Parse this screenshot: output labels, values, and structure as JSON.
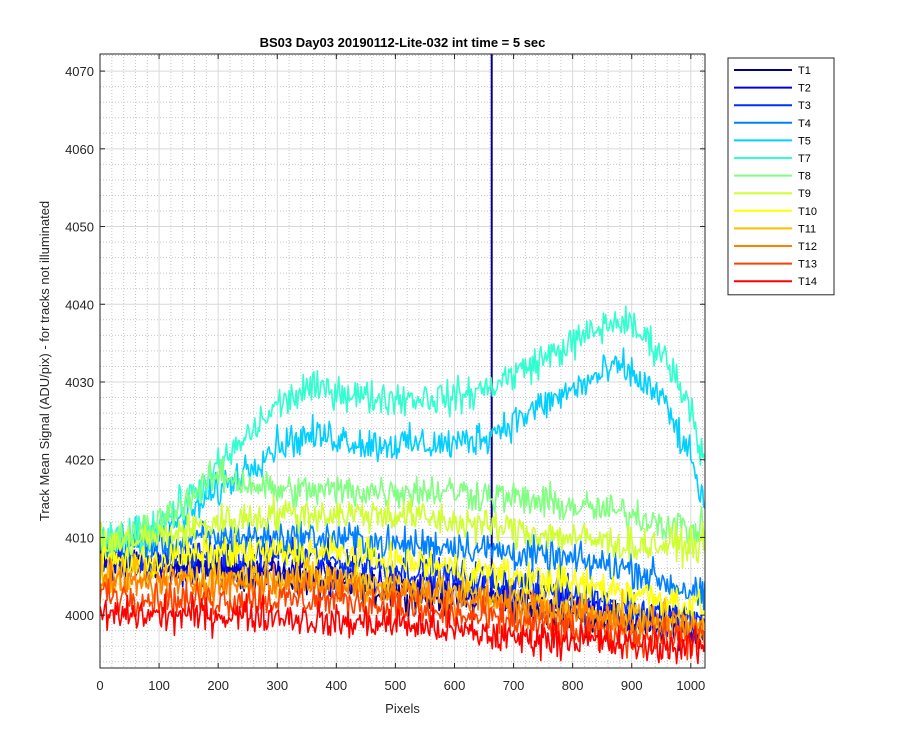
{
  "chart_data": {
    "type": "line",
    "title": "BS03 Day03 20190112-Lite-032 int time = 5 sec",
    "xlabel": "Pixels",
    "ylabel": "Track Mean Signal (ADU/pix) - for tracks not illuminated",
    "xlim": [
      0,
      1024
    ],
    "ylim": [
      3993.2,
      4072.2
    ],
    "xticks": [
      0,
      100,
      200,
      300,
      400,
      500,
      600,
      700,
      800,
      900,
      1000
    ],
    "yticks": [
      4000,
      4010,
      4020,
      4030,
      4040,
      4050,
      4060,
      4070
    ],
    "grid": true,
    "minor_grid": true,
    "legend_position": "outside-right-top",
    "noise_amplitude_note": "",
    "series": [
      {
        "name": "T1",
        "color": "#00008f",
        "points": [
          [
            0,
            4007
          ],
          [
            100,
            4006
          ],
          [
            200,
            4006
          ],
          [
            300,
            4005
          ],
          [
            400,
            4004
          ],
          [
            500,
            4003
          ],
          [
            600,
            4002
          ],
          [
            665,
            4002
          ],
          [
            700,
            4001
          ],
          [
            800,
            4000
          ],
          [
            900,
            3999
          ],
          [
            1024,
            3998
          ]
        ],
        "spike": {
          "x": 663,
          "y": 4073
        }
      },
      {
        "name": "T2",
        "color": "#0000df",
        "points": [
          [
            0,
            4007
          ],
          [
            100,
            4006
          ],
          [
            200,
            4006
          ],
          [
            300,
            4006
          ],
          [
            400,
            4005
          ],
          [
            500,
            4004
          ],
          [
            600,
            4003
          ],
          [
            700,
            4002
          ],
          [
            800,
            4001
          ],
          [
            900,
            4000
          ],
          [
            1024,
            3998
          ]
        ]
      },
      {
        "name": "T3",
        "color": "#0030ff",
        "points": [
          [
            0,
            4008
          ],
          [
            100,
            4007
          ],
          [
            200,
            4008
          ],
          [
            300,
            4008
          ],
          [
            400,
            4007
          ],
          [
            500,
            4006
          ],
          [
            600,
            4005
          ],
          [
            700,
            4004
          ],
          [
            800,
            4003
          ],
          [
            900,
            4001
          ],
          [
            1024,
            3999
          ]
        ]
      },
      {
        "name": "T4",
        "color": "#0080ff",
        "points": [
          [
            0,
            4009
          ],
          [
            100,
            4009
          ],
          [
            200,
            4010
          ],
          [
            300,
            4010
          ],
          [
            400,
            4010
          ],
          [
            500,
            4009
          ],
          [
            600,
            4009
          ],
          [
            700,
            4008
          ],
          [
            800,
            4007
          ],
          [
            900,
            4006
          ],
          [
            1000,
            4003
          ],
          [
            1024,
            4002
          ]
        ]
      },
      {
        "name": "T5",
        "color": "#00cfff",
        "points": [
          [
            0,
            4009
          ],
          [
            50,
            4010
          ],
          [
            100,
            4011
          ],
          [
            150,
            4013
          ],
          [
            200,
            4016
          ],
          [
            250,
            4019
          ],
          [
            300,
            4022
          ],
          [
            350,
            4023
          ],
          [
            400,
            4023
          ],
          [
            450,
            4022
          ],
          [
            500,
            4022
          ],
          [
            550,
            4022
          ],
          [
            600,
            4022
          ],
          [
            650,
            4023
          ],
          [
            700,
            4025
          ],
          [
            750,
            4027
          ],
          [
            800,
            4029
          ],
          [
            850,
            4031
          ],
          [
            880,
            4032
          ],
          [
            900,
            4031
          ],
          [
            950,
            4028
          ],
          [
            1000,
            4020
          ],
          [
            1024,
            4014
          ]
        ]
      },
      {
        "name": "T7",
        "color": "#30ffcf",
        "points": [
          [
            0,
            4009
          ],
          [
            50,
            4010
          ],
          [
            100,
            4012
          ],
          [
            150,
            4015
          ],
          [
            200,
            4019
          ],
          [
            250,
            4023
          ],
          [
            300,
            4027
          ],
          [
            350,
            4029
          ],
          [
            400,
            4029
          ],
          [
            450,
            4028
          ],
          [
            500,
            4028
          ],
          [
            550,
            4028
          ],
          [
            600,
            4028
          ],
          [
            650,
            4029
          ],
          [
            700,
            4031
          ],
          [
            750,
            4033
          ],
          [
            800,
            4035
          ],
          [
            850,
            4037
          ],
          [
            880,
            4038
          ],
          [
            900,
            4037
          ],
          [
            950,
            4034
          ],
          [
            1000,
            4027
          ],
          [
            1024,
            4019
          ]
        ]
      },
      {
        "name": "T8",
        "color": "#80ff80",
        "points": [
          [
            0,
            4009
          ],
          [
            50,
            4010
          ],
          [
            100,
            4012
          ],
          [
            150,
            4015
          ],
          [
            200,
            4018
          ],
          [
            250,
            4017
          ],
          [
            300,
            4016
          ],
          [
            400,
            4016
          ],
          [
            500,
            4016
          ],
          [
            600,
            4016
          ],
          [
            700,
            4015
          ],
          [
            800,
            4014
          ],
          [
            900,
            4013
          ],
          [
            1000,
            4011
          ],
          [
            1024,
            4011
          ]
        ]
      },
      {
        "name": "T9",
        "color": "#cfff30",
        "points": [
          [
            0,
            4009
          ],
          [
            100,
            4010
          ],
          [
            200,
            4012
          ],
          [
            300,
            4013
          ],
          [
            400,
            4013
          ],
          [
            500,
            4013
          ],
          [
            600,
            4012
          ],
          [
            700,
            4011
          ],
          [
            800,
            4010
          ],
          [
            900,
            4009
          ],
          [
            1024,
            4009
          ]
        ]
      },
      {
        "name": "T10",
        "color": "#ffff00",
        "points": [
          [
            0,
            4007
          ],
          [
            100,
            4007
          ],
          [
            200,
            4008
          ],
          [
            300,
            4008
          ],
          [
            400,
            4008
          ],
          [
            500,
            4007
          ],
          [
            600,
            4006
          ],
          [
            700,
            4005
          ],
          [
            800,
            4004
          ],
          [
            900,
            4003
          ],
          [
            1024,
            4001
          ]
        ]
      },
      {
        "name": "T11",
        "color": "#ffbf00",
        "points": [
          [
            0,
            4005
          ],
          [
            100,
            4005
          ],
          [
            200,
            4005
          ],
          [
            300,
            4005
          ],
          [
            400,
            4005
          ],
          [
            500,
            4004
          ],
          [
            600,
            4003
          ],
          [
            700,
            4002
          ],
          [
            800,
            4001
          ],
          [
            900,
            4000
          ],
          [
            1024,
            3999
          ]
        ]
      },
      {
        "name": "T12",
        "color": "#ff8000",
        "points": [
          [
            0,
            4004
          ],
          [
            100,
            4004
          ],
          [
            200,
            4004
          ],
          [
            300,
            4004
          ],
          [
            400,
            4004
          ],
          [
            500,
            4003
          ],
          [
            600,
            4002
          ],
          [
            700,
            4001
          ],
          [
            800,
            4000
          ],
          [
            900,
            3999
          ],
          [
            1024,
            3998
          ]
        ]
      },
      {
        "name": "T13",
        "color": "#ff4000",
        "points": [
          [
            0,
            4003
          ],
          [
            100,
            4002
          ],
          [
            200,
            4002
          ],
          [
            300,
            4002
          ],
          [
            400,
            4002
          ],
          [
            500,
            4001
          ],
          [
            600,
            4000
          ],
          [
            700,
            3999
          ],
          [
            800,
            3998
          ],
          [
            900,
            3997
          ],
          [
            1024,
            3997
          ]
        ]
      },
      {
        "name": "T14",
        "color": "#ff0000",
        "points": [
          [
            0,
            4000
          ],
          [
            100,
            4000
          ],
          [
            200,
            4000
          ],
          [
            300,
            4000
          ],
          [
            400,
            3999
          ],
          [
            500,
            3999
          ],
          [
            600,
            3998
          ],
          [
            700,
            3997
          ],
          [
            800,
            3997
          ],
          [
            900,
            3996
          ],
          [
            1024,
            3996
          ]
        ]
      }
    ]
  }
}
